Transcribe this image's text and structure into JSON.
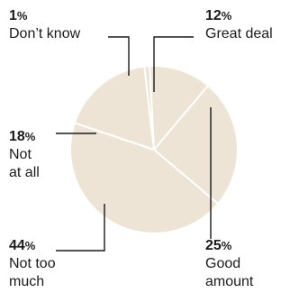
{
  "chart_data": {
    "type": "pie",
    "title": "",
    "start_angle_deg": -3,
    "slice_color": "#ede4d5",
    "divider_color": "#ffffff",
    "leader_color": "#1a1a1a",
    "slices": [
      {
        "name": "Great deal",
        "value": 12,
        "pct": "12",
        "label": "Great deal"
      },
      {
        "name": "Good amount",
        "value": 25,
        "pct": "25",
        "label": "Good\namount"
      },
      {
        "name": "Not too much",
        "value": 44,
        "pct": "44",
        "label": "Not too\nmuch"
      },
      {
        "name": "Not at all",
        "value": 18,
        "pct": "18",
        "label": "Not\nat all"
      },
      {
        "name": "Don't know",
        "value": 1,
        "pct": "1",
        "label": "Don’t know"
      }
    ],
    "percent_symbol": "%"
  }
}
